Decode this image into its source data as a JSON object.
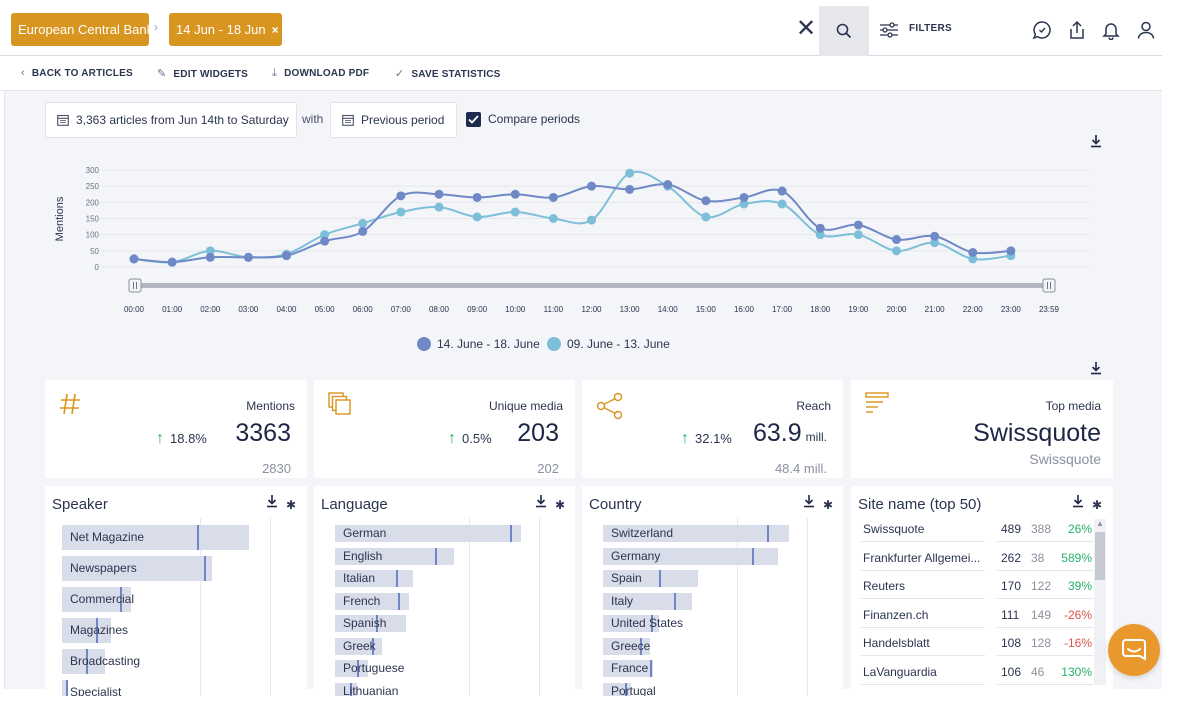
{
  "header": {
    "chip_entity": "European Central Bank",
    "chip_period": "14 Jun - 18 Jun",
    "chip_close": "×",
    "breadcrumb_sep": "›",
    "clear": "✕",
    "filters_label": "FILTERS"
  },
  "actions": {
    "back": "BACK TO ARTICLES",
    "edit": "EDIT WIDGETS",
    "download": "DOWNLOAD PDF",
    "save": "SAVE STATISTICS"
  },
  "controls": {
    "range_label": "3,363 articles from Jun 14th to Saturday",
    "with_label": "with",
    "compare_selector": "Previous period",
    "compare_checkbox_label": "Compare periods",
    "compare_checked": true
  },
  "chart_data": {
    "type": "line",
    "title": "",
    "ylabel": "Mentions",
    "ylim": [
      0,
      300
    ],
    "yticks": [
      0,
      50,
      100,
      150,
      200,
      250,
      300
    ],
    "x": [
      "00:00",
      "01:00",
      "02:00",
      "03:00",
      "04:00",
      "05:00",
      "06:00",
      "07:00",
      "08:00",
      "09:00",
      "10:00",
      "11:00",
      "12:00",
      "13:00",
      "14:00",
      "15:00",
      "16:00",
      "17:00",
      "18:00",
      "19:00",
      "20:00",
      "21:00",
      "22:00",
      "23:00"
    ],
    "x_end_label": "23:59",
    "series": [
      {
        "name": "14. June - 18. June",
        "color": "#6f89c7",
        "values": [
          25,
          15,
          30,
          30,
          35,
          80,
          110,
          220,
          225,
          215,
          225,
          215,
          250,
          240,
          255,
          205,
          215,
          235,
          120,
          130,
          85,
          95,
          45,
          50
        ]
      },
      {
        "name": "09. June - 13. June",
        "color": "#7dbfd8",
        "values": [
          25,
          15,
          50,
          30,
          40,
          100,
          135,
          170,
          185,
          155,
          170,
          150,
          145,
          290,
          250,
          155,
          195,
          195,
          100,
          100,
          50,
          75,
          25,
          35
        ]
      }
    ],
    "legend_position": "bottom-center"
  },
  "kpis": [
    {
      "label": "Mentions",
      "delta": "18.8%",
      "value": "3363",
      "unit": "",
      "previous": "2830"
    },
    {
      "label": "Unique media",
      "delta": "0.5%",
      "value": "203",
      "unit": "",
      "previous": "202"
    },
    {
      "label": "Reach",
      "delta": "32.1%",
      "value": "63.9",
      "unit": "mill.",
      "previous": "48.4",
      "previous_unit": "mill."
    },
    {
      "label": "Top media",
      "value": "Swissquote",
      "previous": "Swissquote"
    }
  ],
  "speaker": {
    "title": "Speaker",
    "items": [
      {
        "label": "Net Magazine",
        "value": 100,
        "previous": 72
      },
      {
        "label": "Newspapers",
        "value": 80,
        "previous": 76
      },
      {
        "label": "Commercial",
        "value": 37,
        "previous": 31
      },
      {
        "label": "Magazines",
        "value": 26,
        "previous": 18
      },
      {
        "label": "Broadcasting",
        "value": 23,
        "previous": 13
      },
      {
        "label": "Specialist",
        "value": 3,
        "previous": 2
      }
    ]
  },
  "language": {
    "title": "Language",
    "items": [
      {
        "label": "German",
        "value": 100,
        "previous": 94
      },
      {
        "label": "English",
        "value": 64,
        "previous": 54
      },
      {
        "label": "Italian",
        "value": 42,
        "previous": 33
      },
      {
        "label": "French",
        "value": 40,
        "previous": 34
      },
      {
        "label": "Spanish",
        "value": 38,
        "previous": 22
      },
      {
        "label": "Greek",
        "value": 25,
        "previous": 20
      },
      {
        "label": "Portuguese",
        "value": 18,
        "previous": 12
      },
      {
        "label": "Lithuanian",
        "value": 12,
        "previous": 8
      }
    ]
  },
  "country": {
    "title": "Country",
    "items": [
      {
        "label": "Switzerland",
        "value": 100,
        "previous": 88
      },
      {
        "label": "Germany",
        "value": 94,
        "previous": 80
      },
      {
        "label": "Spain",
        "value": 51,
        "previous": 30
      },
      {
        "label": "Italy",
        "value": 48,
        "previous": 38
      },
      {
        "label": "United States",
        "value": 30,
        "previous": 26
      },
      {
        "label": "Greece",
        "value": 25,
        "previous": 20
      },
      {
        "label": "France",
        "value": 27,
        "previous": 25
      },
      {
        "label": "Portugal",
        "value": 15,
        "previous": 12
      }
    ]
  },
  "sites": {
    "title": "Site name (top 50)",
    "rows": [
      {
        "name": "Swissquote",
        "current": "489",
        "previous": "388",
        "change": "26%",
        "trend": "pos"
      },
      {
        "name": "Frankfurter Allgemei...",
        "current": "262",
        "previous": "38",
        "change": "589%",
        "trend": "pos"
      },
      {
        "name": "Reuters",
        "current": "170",
        "previous": "122",
        "change": "39%",
        "trend": "pos"
      },
      {
        "name": "Finanzen.ch",
        "current": "111",
        "previous": "149",
        "change": "-26%",
        "trend": "neg"
      },
      {
        "name": "Handelsblatt",
        "current": "108",
        "previous": "128",
        "change": "-16%",
        "trend": "neg"
      },
      {
        "name": "LaVanguardia",
        "current": "106",
        "previous": "46",
        "change": "130%",
        "trend": "pos"
      }
    ]
  },
  "icons": {
    "search": "search-icon",
    "filters": "sliders-icon",
    "chat": "chat-bubble-icon",
    "share": "share-icon",
    "bell": "bell-icon",
    "user": "user-icon",
    "download": "download-icon",
    "settings": "gear-icon"
  }
}
